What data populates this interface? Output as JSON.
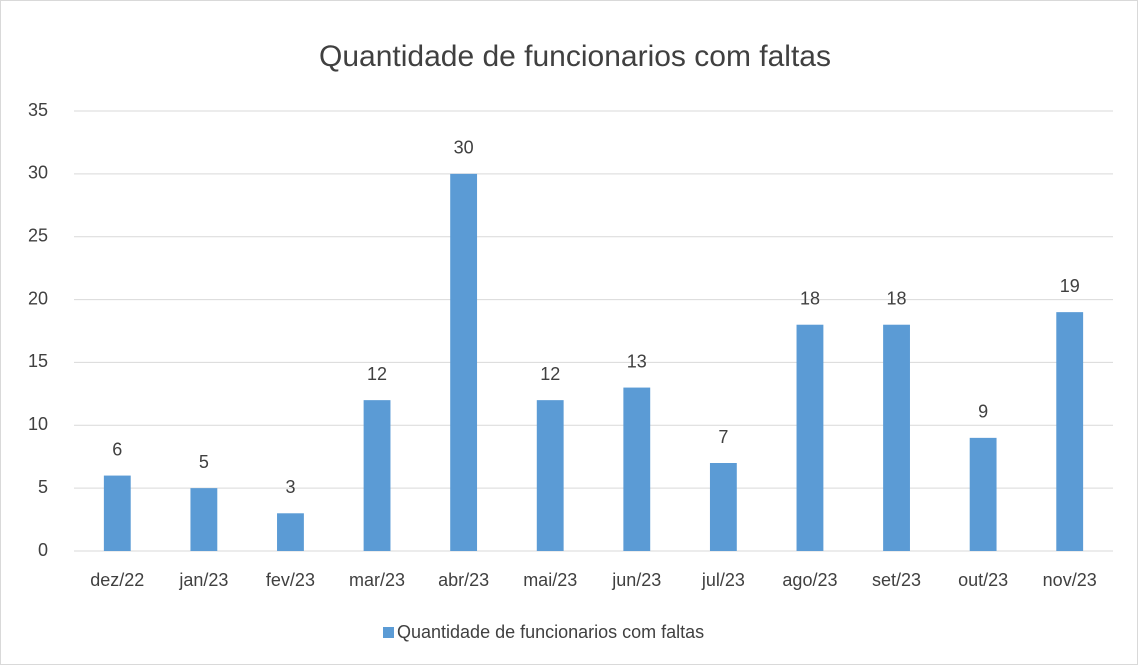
{
  "chart_data": {
    "type": "bar",
    "title": "Quantidade de funcionarios com faltas",
    "categories": [
      "dez/22",
      "jan/23",
      "fev/23",
      "mar/23",
      "abr/23",
      "mai/23",
      "jun/23",
      "jul/23",
      "ago/23",
      "set/23",
      "out/23",
      "nov/23"
    ],
    "series": [
      {
        "name": "Quantidade de funcionarios com faltas",
        "color": "#5b9bd5",
        "values": [
          6,
          5,
          3,
          12,
          30,
          12,
          13,
          7,
          18,
          18,
          9,
          19
        ]
      }
    ],
    "ylim": [
      0,
      35
    ],
    "yticks": [
      0,
      5,
      10,
      15,
      20,
      25,
      30,
      35
    ],
    "grid": true,
    "legend": "bottom"
  }
}
